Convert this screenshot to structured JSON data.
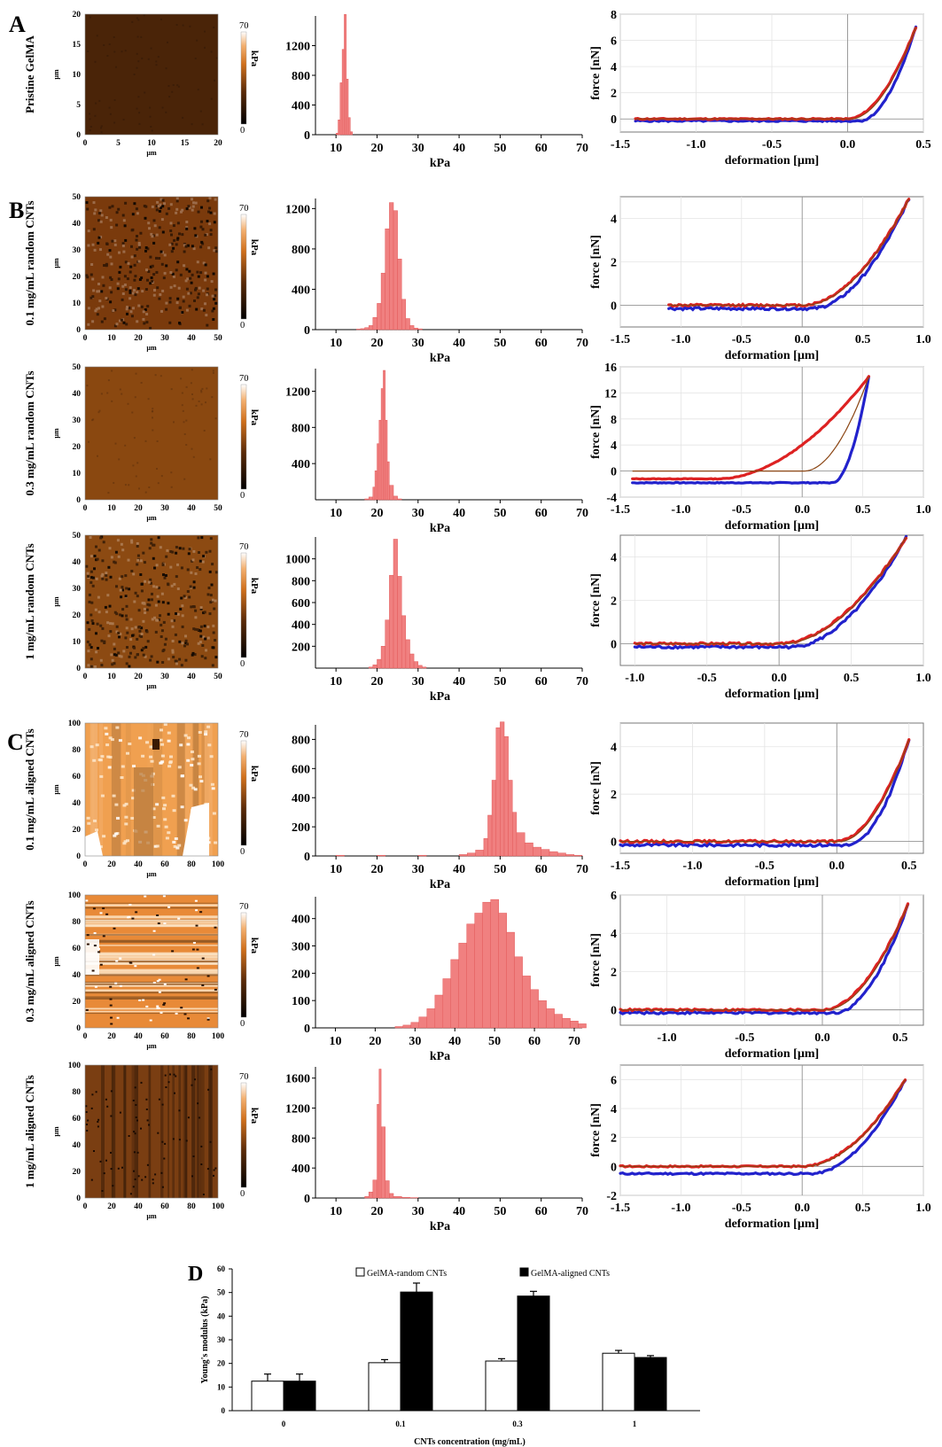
{
  "panel_letters": [
    "A",
    "B",
    "C",
    "D"
  ],
  "maps": {
    "colorbar_max": "70",
    "colorbar_min": "0",
    "colorbar_unit": "kPa",
    "axis_unit": "µm"
  },
  "histograms": {
    "xlabel": "kPa",
    "x_ticks": [
      10,
      20,
      30,
      40,
      50,
      60,
      70
    ]
  },
  "force_curves": {
    "xlabel": "deformation [µm]",
    "ylabel": "force [nN]",
    "approach_color": "#2222cc",
    "retract_color": "#dd2222",
    "fit_color": "#8b4513"
  },
  "colors": {
    "histogram_fill": "#f08080",
    "histogram_edge": "#e35a5a"
  },
  "rows": [
    {
      "label": "Pristine GelMA",
      "map": {
        "max_um": 20,
        "ticks": [
          0,
          5,
          10,
          15,
          20
        ],
        "color": "#4a2408",
        "texture": "smooth"
      },
      "hist": {
        "x_min": 5,
        "x_max": 70,
        "y_max": 1600,
        "y_ticks": [
          0,
          400,
          800,
          1200
        ],
        "bins": [
          [
            10,
            20
          ],
          [
            10.5,
            200
          ],
          [
            11,
            700
          ],
          [
            11.5,
            1150
          ],
          [
            12,
            1620
          ],
          [
            12.5,
            750
          ],
          [
            13,
            230
          ],
          [
            13.5,
            40
          ]
        ]
      },
      "curve": {
        "x_min": -1.5,
        "x_max": 0.5,
        "x_ticks": [
          "-1.5",
          "-1.0",
          "-0.5",
          "0.0",
          "0.5"
        ],
        "y_min": -1,
        "y_max": 8,
        "y_ticks": [
          "0",
          "2",
          "4",
          "6",
          "8"
        ],
        "end_x": 0.45,
        "end_y": 7,
        "start_x": -1.4
      }
    },
    {
      "label": "0.1 mg/mL random CNTs",
      "map": {
        "max_um": 50,
        "ticks": [
          0,
          10,
          20,
          30,
          40,
          50
        ],
        "color": "#7a3a0c",
        "texture": "speckled"
      },
      "hist": {
        "x_min": 5,
        "x_max": 70,
        "y_max": 1300,
        "y_ticks": [
          0,
          400,
          800,
          1200
        ],
        "bins": [
          [
            15,
            5
          ],
          [
            16,
            10
          ],
          [
            17,
            20
          ],
          [
            18,
            40
          ],
          [
            19,
            120
          ],
          [
            20,
            260
          ],
          [
            21,
            560
          ],
          [
            22,
            1000
          ],
          [
            23,
            1260
          ],
          [
            24,
            1180
          ],
          [
            25,
            700
          ],
          [
            26,
            300
          ],
          [
            27,
            110
          ],
          [
            28,
            40
          ],
          [
            29,
            15
          ],
          [
            30,
            8
          ]
        ]
      },
      "curve": {
        "x_min": -1.5,
        "x_max": 1.0,
        "x_ticks": [
          "-1.5",
          "-1.0",
          "-0.5",
          "0.0",
          "0.5",
          "1.0"
        ],
        "y_min": -1,
        "y_max": 5,
        "y_ticks": [
          "0",
          "2",
          "4"
        ],
        "end_x": 0.88,
        "end_y": 4.9,
        "start_x": -1.1
      }
    },
    {
      "label": "0.3 mg/mL random CNTs",
      "map": {
        "max_um": 50,
        "ticks": [
          0,
          10,
          20,
          30,
          40,
          50
        ],
        "color": "#8a4810",
        "texture": "smooth"
      },
      "hist": {
        "x_min": 5,
        "x_max": 70,
        "y_max": 1450,
        "y_ticks": [
          400,
          800,
          1200
        ],
        "bins": [
          [
            17,
            10
          ],
          [
            18,
            30
          ],
          [
            19,
            140
          ],
          [
            19.5,
            320
          ],
          [
            20,
            620
          ],
          [
            20.5,
            880
          ],
          [
            21,
            1230
          ],
          [
            21.5,
            1430
          ],
          [
            22,
            880
          ],
          [
            22.5,
            420
          ],
          [
            23,
            160
          ],
          [
            24,
            40
          ],
          [
            25,
            10
          ]
        ]
      },
      "curve": {
        "x_min": -1.5,
        "x_max": 1.0,
        "x_ticks": [
          "-1.5",
          "-1.0",
          "-0.5",
          "0.0",
          "0.5",
          "1.0"
        ],
        "y_min": -4,
        "y_max": 16,
        "y_ticks": [
          "-4",
          "0",
          "4",
          "8",
          "12",
          "16"
        ],
        "end_x": 0.55,
        "end_y": 14.5,
        "start_x": -1.4
      }
    },
    {
      "label": "1 mg/mL random CNTs",
      "map": {
        "max_um": 50,
        "ticks": [
          0,
          10,
          20,
          30,
          40,
          50
        ],
        "color": "#8c4a12",
        "texture": "speckled"
      },
      "hist": {
        "x_min": 5,
        "x_max": 70,
        "y_max": 1200,
        "y_ticks": [
          200,
          400,
          600,
          800,
          1000
        ],
        "bins": [
          [
            18,
            10
          ],
          [
            19,
            30
          ],
          [
            20,
            80
          ],
          [
            21,
            200
          ],
          [
            22,
            440
          ],
          [
            23,
            850
          ],
          [
            24,
            1180
          ],
          [
            25,
            840
          ],
          [
            26,
            480
          ],
          [
            27,
            260
          ],
          [
            28,
            130
          ],
          [
            29,
            60
          ],
          [
            30,
            25
          ],
          [
            31,
            10
          ]
        ]
      },
      "curve": {
        "x_min": -1.1,
        "x_max": 1.0,
        "x_ticks": [
          "-1.0",
          "-0.5",
          "0.0",
          "0.5",
          "1.0"
        ],
        "y_min": -1,
        "y_max": 5,
        "y_ticks": [
          "0",
          "2",
          "4"
        ],
        "end_x": 0.88,
        "end_y": 4.9,
        "start_x": -1.0
      }
    },
    {
      "label": "0.1 mg/mL aligned CNTs",
      "map": {
        "max_um": 100,
        "ticks": [
          0,
          20,
          40,
          60,
          80,
          100
        ],
        "color": "#f0a050",
        "texture": "aligned-patchy"
      },
      "hist": {
        "x_min": 5,
        "x_max": 70,
        "y_max": 900,
        "y_ticks": [
          0,
          200,
          400,
          600,
          800
        ],
        "bins": [
          [
            10,
            5
          ],
          [
            20,
            5
          ],
          [
            30,
            5
          ],
          [
            40,
            10
          ],
          [
            42,
            20
          ],
          [
            44,
            40
          ],
          [
            46,
            120
          ],
          [
            47,
            280
          ],
          [
            48,
            520
          ],
          [
            49,
            880
          ],
          [
            50,
            920
          ],
          [
            51,
            820
          ],
          [
            52,
            520
          ],
          [
            53,
            300
          ],
          [
            54,
            160
          ],
          [
            56,
            90
          ],
          [
            58,
            60
          ],
          [
            60,
            45
          ],
          [
            62,
            30
          ],
          [
            64,
            20
          ],
          [
            66,
            10
          ],
          [
            68,
            5
          ]
        ]
      },
      "curve": {
        "x_min": -1.5,
        "x_max": 0.6,
        "x_ticks": [
          "-1.5",
          "-1.0",
          "-0.5",
          "0.0",
          "0.5"
        ],
        "y_min": -0.5,
        "y_max": 5,
        "y_ticks": [
          "0",
          "2",
          "4"
        ],
        "end_x": 0.5,
        "end_y": 4.3,
        "start_x": -1.5
      }
    },
    {
      "label": "0.3 mg/mL aligned CNTs",
      "map": {
        "max_um": 100,
        "ticks": [
          0,
          20,
          40,
          60,
          80,
          100
        ],
        "color": "#e88a38",
        "texture": "aligned-stripes"
      },
      "hist": {
        "x_min": 5,
        "x_max": 72,
        "y_max": 480,
        "y_ticks": [
          0,
          100,
          200,
          300,
          400
        ],
        "bins": [
          [
            25,
            5
          ],
          [
            27,
            10
          ],
          [
            29,
            20
          ],
          [
            31,
            40
          ],
          [
            33,
            70
          ],
          [
            35,
            120
          ],
          [
            37,
            180
          ],
          [
            39,
            250
          ],
          [
            41,
            310
          ],
          [
            43,
            380
          ],
          [
            45,
            420
          ],
          [
            47,
            460
          ],
          [
            49,
            470
          ],
          [
            51,
            420
          ],
          [
            53,
            350
          ],
          [
            55,
            260
          ],
          [
            57,
            190
          ],
          [
            59,
            140
          ],
          [
            61,
            100
          ],
          [
            63,
            70
          ],
          [
            65,
            50
          ],
          [
            67,
            35
          ],
          [
            69,
            25
          ],
          [
            71,
            15
          ]
        ]
      },
      "curve": {
        "x_min": -1.3,
        "x_max": 0.65,
        "x_ticks": [
          "-1.0",
          "-0.5",
          "0.0",
          "0.5"
        ],
        "y_min": -0.8,
        "y_max": 6,
        "y_ticks": [
          "0",
          "2",
          "4",
          "6"
        ],
        "end_x": 0.55,
        "end_y": 5.5,
        "start_x": -1.3
      }
    },
    {
      "label": "1 mg/mL aligned CNTs",
      "map": {
        "max_um": 100,
        "ticks": [
          0,
          20,
          40,
          60,
          80,
          100
        ],
        "color": "#7a3e12",
        "texture": "aligned-dark"
      },
      "hist": {
        "x_min": 5,
        "x_max": 70,
        "y_max": 1750,
        "y_ticks": [
          0,
          400,
          800,
          1200,
          1600
        ],
        "bins": [
          [
            17,
            20
          ],
          [
            18,
            80
          ],
          [
            19,
            240
          ],
          [
            20,
            1250
          ],
          [
            20.5,
            1720
          ],
          [
            21,
            950
          ],
          [
            22,
            230
          ],
          [
            23,
            60
          ],
          [
            24,
            20
          ],
          [
            26,
            10
          ],
          [
            28,
            5
          ]
        ]
      },
      "curve": {
        "x_min": -1.5,
        "x_max": 1.0,
        "x_ticks": [
          "-1.5",
          "-1.0",
          "-0.5",
          "0.0",
          "0.5",
          "1.0"
        ],
        "y_min": -2,
        "y_max": 7,
        "y_ticks": [
          "-2",
          "0",
          "2",
          "4",
          "6"
        ],
        "end_x": 0.85,
        "end_y": 6,
        "start_x": -1.5
      }
    }
  ],
  "chart_data": {
    "type": "bar",
    "title": "",
    "xlabel": "CNTs concentration (mg/mL)",
    "ylabel": "Young's modulus (kPa)",
    "categories": [
      "0",
      "0.1",
      "0.3",
      "1"
    ],
    "ylim": [
      0,
      60
    ],
    "y_ticks": [
      0,
      10,
      20,
      30,
      40,
      50,
      60
    ],
    "legend_position": "top",
    "series": [
      {
        "name": "GelMA-random CNTs",
        "color": "#ffffff",
        "values": [
          12.5,
          20.3,
          21.0,
          24.3
        ],
        "errors": [
          3.0,
          1.3,
          1.0,
          1.2
        ]
      },
      {
        "name": "GelMA-aligned CNTs",
        "color": "#000000",
        "values": [
          12.5,
          50.2,
          48.5,
          22.5
        ],
        "errors": [
          3.0,
          3.8,
          2.0,
          0.8
        ]
      }
    ]
  }
}
